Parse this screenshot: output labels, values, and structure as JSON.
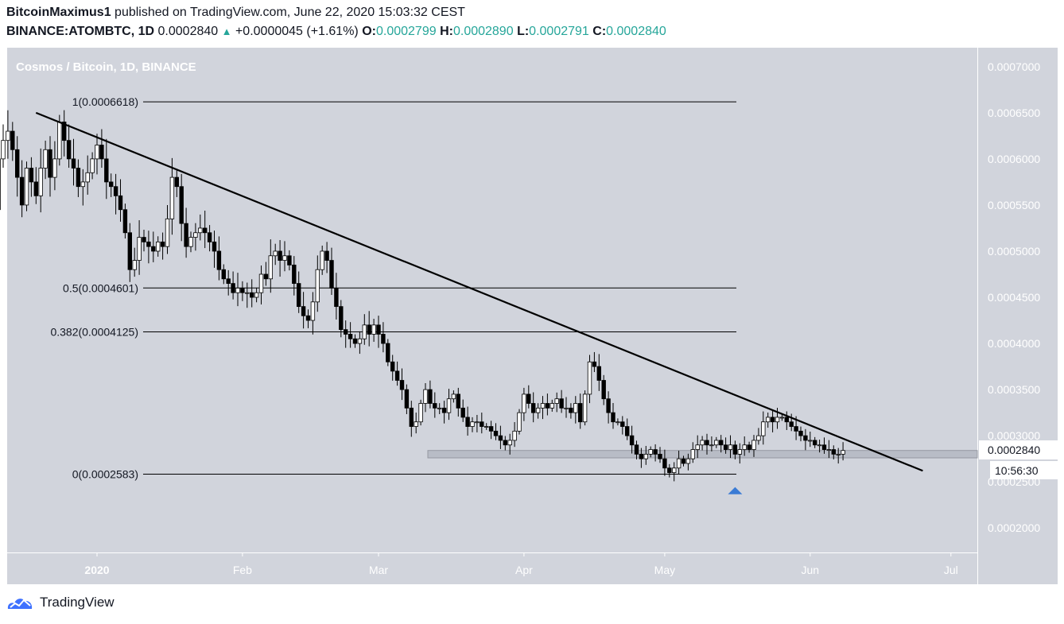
{
  "header": {
    "author": "BitcoinMaximus1",
    "published": " published on TradingView.com, June 22, 2020 15:03:32 CEST",
    "symbol": "BINANCE:ATOMBTC, 1D",
    "price": "0.0002840",
    "change": "+0.0000045 (+1.61%)",
    "o_label": "O:",
    "o_value": "0.0002799",
    "h_label": "H:",
    "h_value": "0.0002890",
    "l_label": "L:",
    "l_value": "0.0002791",
    "c_label": "C:",
    "c_value": "0.0002840"
  },
  "footer": {
    "brand": "TradingView",
    "icon": "tradingview-logo-icon"
  },
  "colors": {
    "chart_bg": "#d1d4dc",
    "axis_bg": "#d1d4dc",
    "candle_up": "#ffffff",
    "candle_down": "#000000",
    "accent_green": "#26a69a",
    "marker_blue": "#3a7bd5",
    "zone": "#b8bcc6"
  },
  "chart_data": {
    "type": "candlestick",
    "title": "Cosmos / Bitcoin, 1D, BINANCE",
    "x_labels": [
      "2020",
      "Feb",
      "Mar",
      "Apr",
      "May",
      "Jun",
      "Jul"
    ],
    "ylim": [
      0.0001735,
      0.0007205
    ],
    "y_ticks": [
      "0.0007000",
      "0.0006500",
      "0.0006000",
      "0.0005500",
      "0.0005000",
      "0.0004500",
      "0.0004000",
      "0.0003500",
      "0.0003000",
      "0.0002500",
      "0.0002000"
    ],
    "y_tick_values": [
      0.0007,
      0.00065,
      0.0006,
      0.00055,
      0.0005,
      0.00045,
      0.0004,
      0.00035,
      0.0003,
      0.00025,
      0.0002
    ],
    "price_label": "0.0002840",
    "countdown": "10:56:30",
    "fib_levels": [
      {
        "label": "1(0.0006618)",
        "value": 0.0006618
      },
      {
        "label": "0.5(0.0004601)",
        "value": 0.0004601
      },
      {
        "label": "0.382(0.0004125)",
        "value": 0.0004125
      },
      {
        "label": "0(0.0002583)",
        "value": 0.0002583
      }
    ],
    "trendline": {
      "start": {
        "date": "2019-12-19",
        "value": 0.00065
      },
      "end": {
        "date": "2020-06-25",
        "value": 0.000262
      }
    },
    "support_zone": [
      0.000276,
      0.000284
    ],
    "marker": {
      "date": "2020-05-16",
      "value": 0.00024
    },
    "first_date": "2019-12-10",
    "closes": [
      0.000545,
      0.0006,
      0.00062,
      0.00063,
      0.00061,
      0.00058,
      0.00055,
      0.00059,
      0.000575,
      0.00056,
      0.00059,
      0.00061,
      0.00058,
      0.0006,
      0.00064,
      0.00062,
      0.0006,
      0.00059,
      0.00057,
      0.000575,
      0.000585,
      0.0006,
      0.000615,
      0.0006,
      0.000575,
      0.00057,
      0.00056,
      0.000545,
      0.00052,
      0.00048,
      0.00049,
      0.000515,
      0.00051,
      0.000505,
      0.0005,
      0.00051,
      0.000505,
      0.000535,
      0.00058,
      0.00057,
      0.00053,
      0.000505,
      0.000515,
      0.00052,
      0.000525,
      0.00052,
      0.00051,
      0.0005,
      0.00048,
      0.00047,
      0.000465,
      0.000455,
      0.00046,
      0.000455,
      0.000455,
      0.00045,
      0.000455,
      0.000475,
      0.00047,
      0.000495,
      0.0005,
      0.00049,
      0.000495,
      0.000485,
      0.000465,
      0.00044,
      0.00043,
      0.000425,
      0.000445,
      0.00048,
      0.0005,
      0.00049,
      0.00046,
      0.00044,
      0.000415,
      0.00041,
      0.000405,
      0.0004,
      0.000405,
      0.00042,
      0.00041,
      0.00042,
      0.00041,
      0.0004,
      0.00038,
      0.00037,
      0.00036,
      0.00035,
      0.00033,
      0.00031,
      0.000315,
      0.000335,
      0.00035,
      0.000335,
      0.00033,
      0.00033,
      0.000325,
      0.00034,
      0.000345,
      0.00033,
      0.00032,
      0.00031,
      0.000315,
      0.000315,
      0.00031,
      0.00031,
      0.000305,
      0.0003,
      0.000295,
      0.00029,
      0.000295,
      0.000305,
      0.000325,
      0.000345,
      0.000335,
      0.000325,
      0.00033,
      0.000335,
      0.00033,
      0.000335,
      0.00034,
      0.00033,
      0.00033,
      0.000325,
      0.000335,
      0.000315,
      0.000345,
      0.00038,
      0.000375,
      0.00036,
      0.00034,
      0.000325,
      0.000315,
      0.000315,
      0.00031,
      0.0003,
      0.00029,
      0.00028,
      0.000275,
      0.00028,
      0.000285,
      0.00028,
      0.000275,
      0.000265,
      0.00026,
      0.000265,
      0.000275,
      0.00027,
      0.000275,
      0.000285,
      0.00029,
      0.000295,
      0.00029,
      0.00029,
      0.000295,
      0.00029,
      0.000285,
      0.00029,
      0.00028,
      0.000285,
      0.00029,
      0.000285,
      0.000295,
      0.0003,
      0.000315,
      0.00032,
      0.000315,
      0.00032,
      0.00032,
      0.000315,
      0.00031,
      0.000305,
      0.0003,
      0.000295,
      0.000295,
      0.00029,
      0.00029,
      0.000285,
      0.000285,
      0.00028,
      0.00028,
      0.000284
    ]
  }
}
